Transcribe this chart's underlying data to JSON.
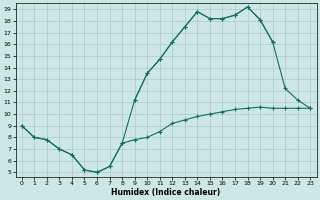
{
  "xlabel": "Humidex (Indice chaleur)",
  "xlim": [
    -0.5,
    23.5
  ],
  "ylim": [
    4.6,
    19.5
  ],
  "xticks": [
    0,
    1,
    2,
    3,
    4,
    5,
    6,
    7,
    8,
    9,
    10,
    11,
    12,
    13,
    14,
    15,
    16,
    17,
    18,
    19,
    20,
    21,
    22,
    23
  ],
  "yticks": [
    5,
    6,
    7,
    8,
    9,
    10,
    11,
    12,
    13,
    14,
    15,
    16,
    17,
    18,
    19
  ],
  "bg_color": "#cce8e5",
  "line_color": "#1a6b5f",
  "grid_color": "#b0c8c5",
  "line1_x": [
    9,
    10,
    11,
    12,
    13,
    14,
    15,
    16,
    17,
    18,
    19,
    20,
    21,
    22,
    23
  ],
  "line1_y": [
    11.2,
    13.5,
    14.7,
    16.2,
    17.5,
    18.8,
    18.2,
    18.2,
    18.5,
    19.2,
    18.1,
    16.2,
    12.2,
    11.2,
    10.5
  ],
  "line2_x": [
    0,
    1,
    2,
    3,
    4,
    5,
    6,
    7,
    8,
    9,
    10,
    11,
    12,
    13,
    14,
    15,
    16,
    17,
    18,
    19,
    20
  ],
  "line2_y": [
    9.0,
    8.0,
    7.8,
    7.0,
    6.5,
    5.2,
    5.0,
    5.5,
    7.5,
    11.2,
    13.5,
    14.7,
    16.2,
    17.5,
    18.8,
    18.2,
    18.2,
    18.5,
    19.2,
    18.1,
    16.2
  ],
  "line3_x": [
    0,
    1,
    2,
    3,
    4,
    5,
    6,
    7,
    8,
    9,
    10,
    11,
    12,
    13,
    14,
    15,
    16,
    17,
    18,
    19,
    20,
    21,
    22,
    23
  ],
  "line3_y": [
    9.0,
    8.0,
    7.8,
    7.0,
    6.5,
    5.2,
    5.0,
    5.5,
    7.5,
    7.8,
    8.0,
    8.5,
    9.2,
    9.5,
    9.8,
    10.0,
    10.2,
    10.4,
    10.5,
    10.6,
    10.5,
    10.5,
    10.5,
    10.5
  ]
}
